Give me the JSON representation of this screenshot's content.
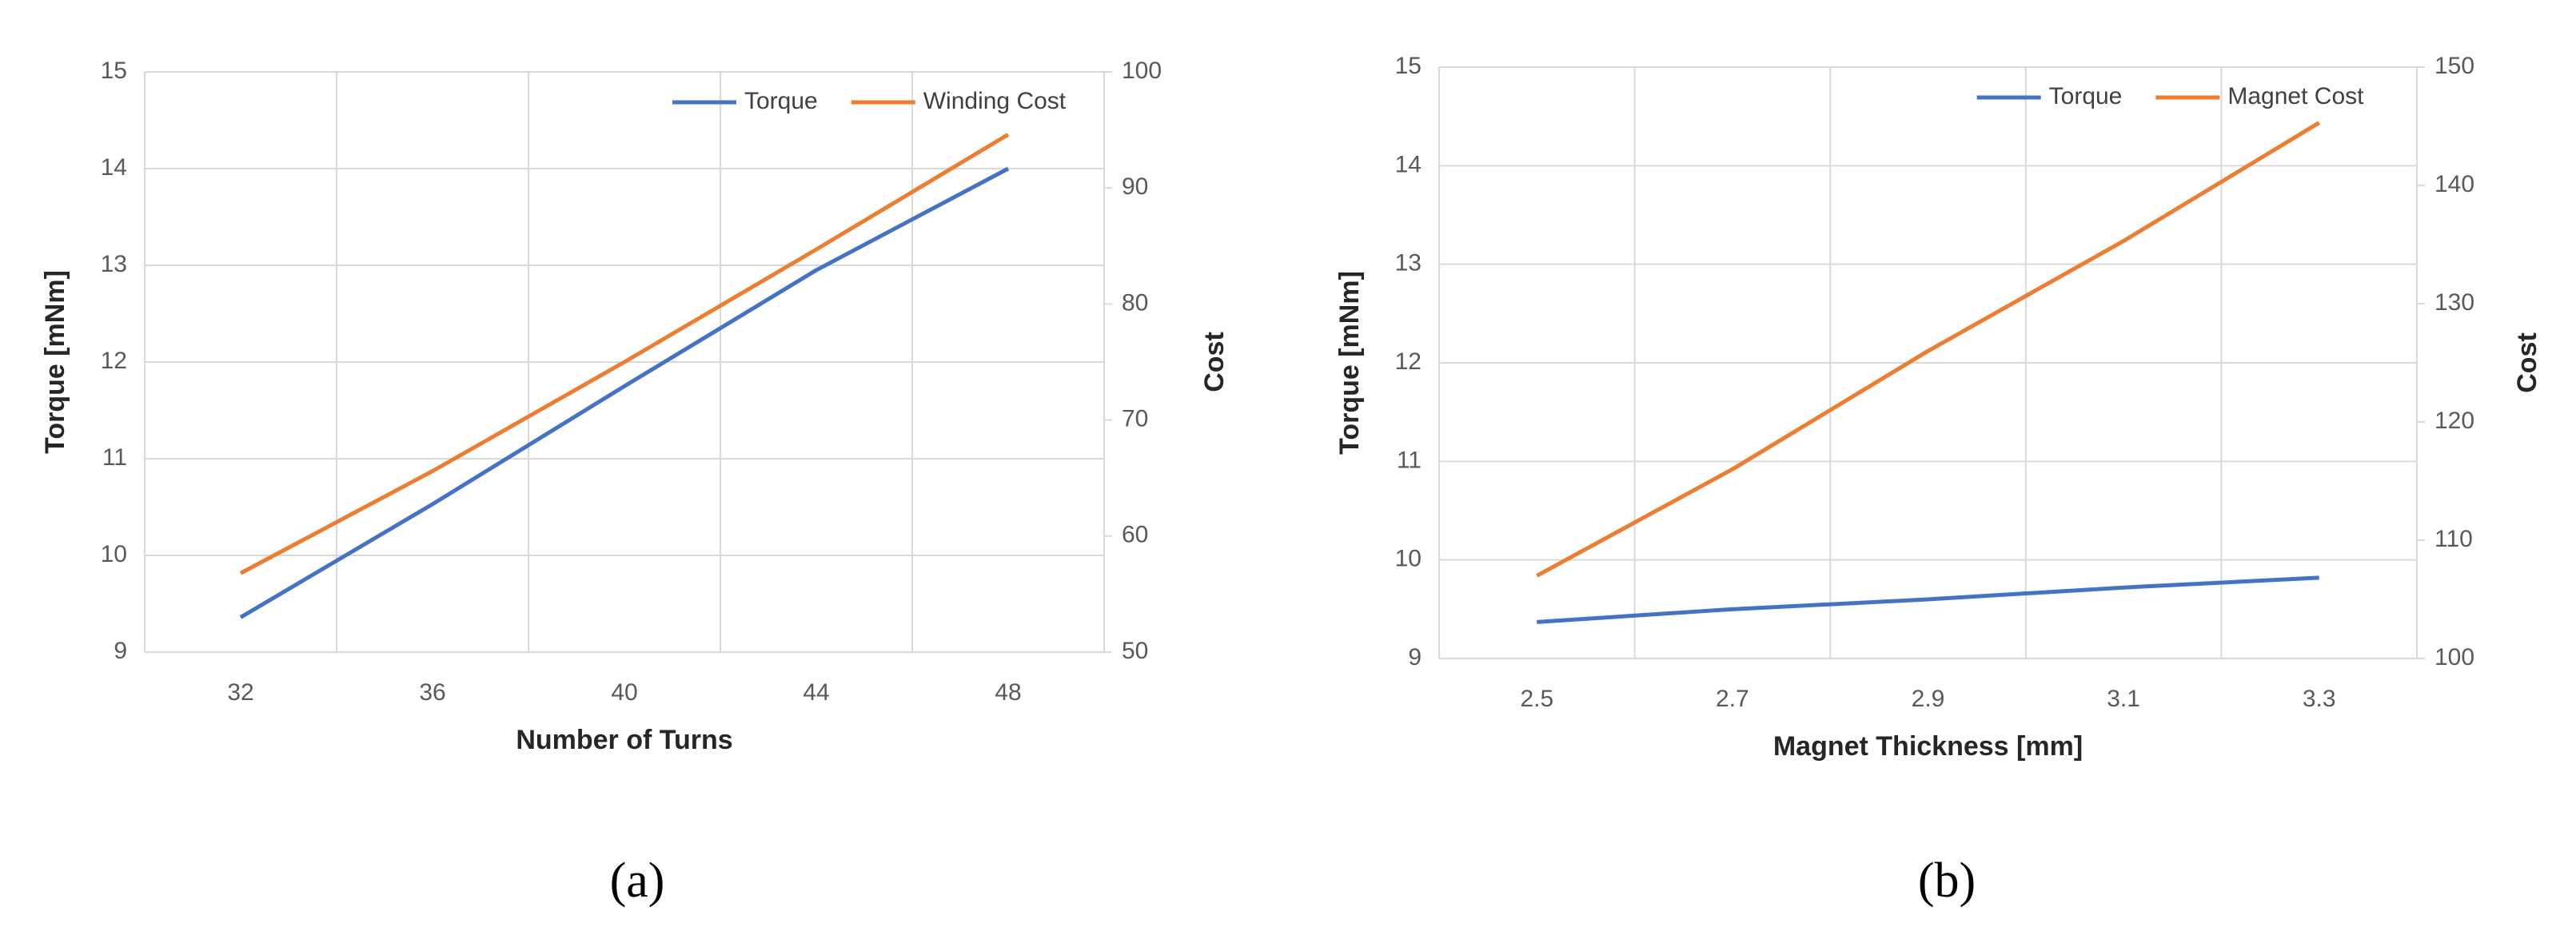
{
  "chart_data": [
    {
      "type": "line",
      "caption": "(a)",
      "x_label": "Number of Turns",
      "y_label": "Torque [mNm]",
      "y2_label": "Cost",
      "categories": [
        "32",
        "36",
        "40",
        "44",
        "48"
      ],
      "series": [
        {
          "name": "Torque",
          "color": "#4472c4",
          "axis": "y",
          "values": [
            9.36,
            10.53,
            11.75,
            12.95,
            14.0
          ]
        },
        {
          "name": "Winding Cost",
          "color": "#ed7d31",
          "axis": "y2",
          "values": [
            56.8,
            65.6,
            75.0,
            84.7,
            94.6
          ]
        }
      ],
      "ylim": [
        9,
        15
      ],
      "yticks": [
        9,
        10,
        11,
        12,
        13,
        14,
        15
      ],
      "y2lim": [
        50,
        100
      ],
      "y2ticks": [
        50,
        60,
        70,
        80,
        90,
        100
      ],
      "grid": true,
      "legend": "upper right"
    },
    {
      "type": "line",
      "caption": "(b)",
      "x_label": "Magnet Thickness [mm]",
      "y_label": "Torque [mNm]",
      "y2_label": "Cost",
      "categories": [
        "2.5",
        "2.7",
        "2.9",
        "3.1",
        "3.3"
      ],
      "series": [
        {
          "name": "Torque",
          "color": "#4472c4",
          "axis": "y",
          "values": [
            9.37,
            9.5,
            9.6,
            9.72,
            9.82
          ]
        },
        {
          "name": "Magnet Cost",
          "color": "#ed7d31",
          "axis": "y2",
          "values": [
            107,
            116,
            126,
            135.3,
            145.3
          ]
        }
      ],
      "ylim": [
        9,
        15
      ],
      "yticks": [
        9,
        10,
        11,
        12,
        13,
        14,
        15
      ],
      "y2lim": [
        100,
        150
      ],
      "y2ticks": [
        100,
        110,
        120,
        130,
        140,
        150
      ],
      "grid": true,
      "legend": "upper right"
    }
  ]
}
